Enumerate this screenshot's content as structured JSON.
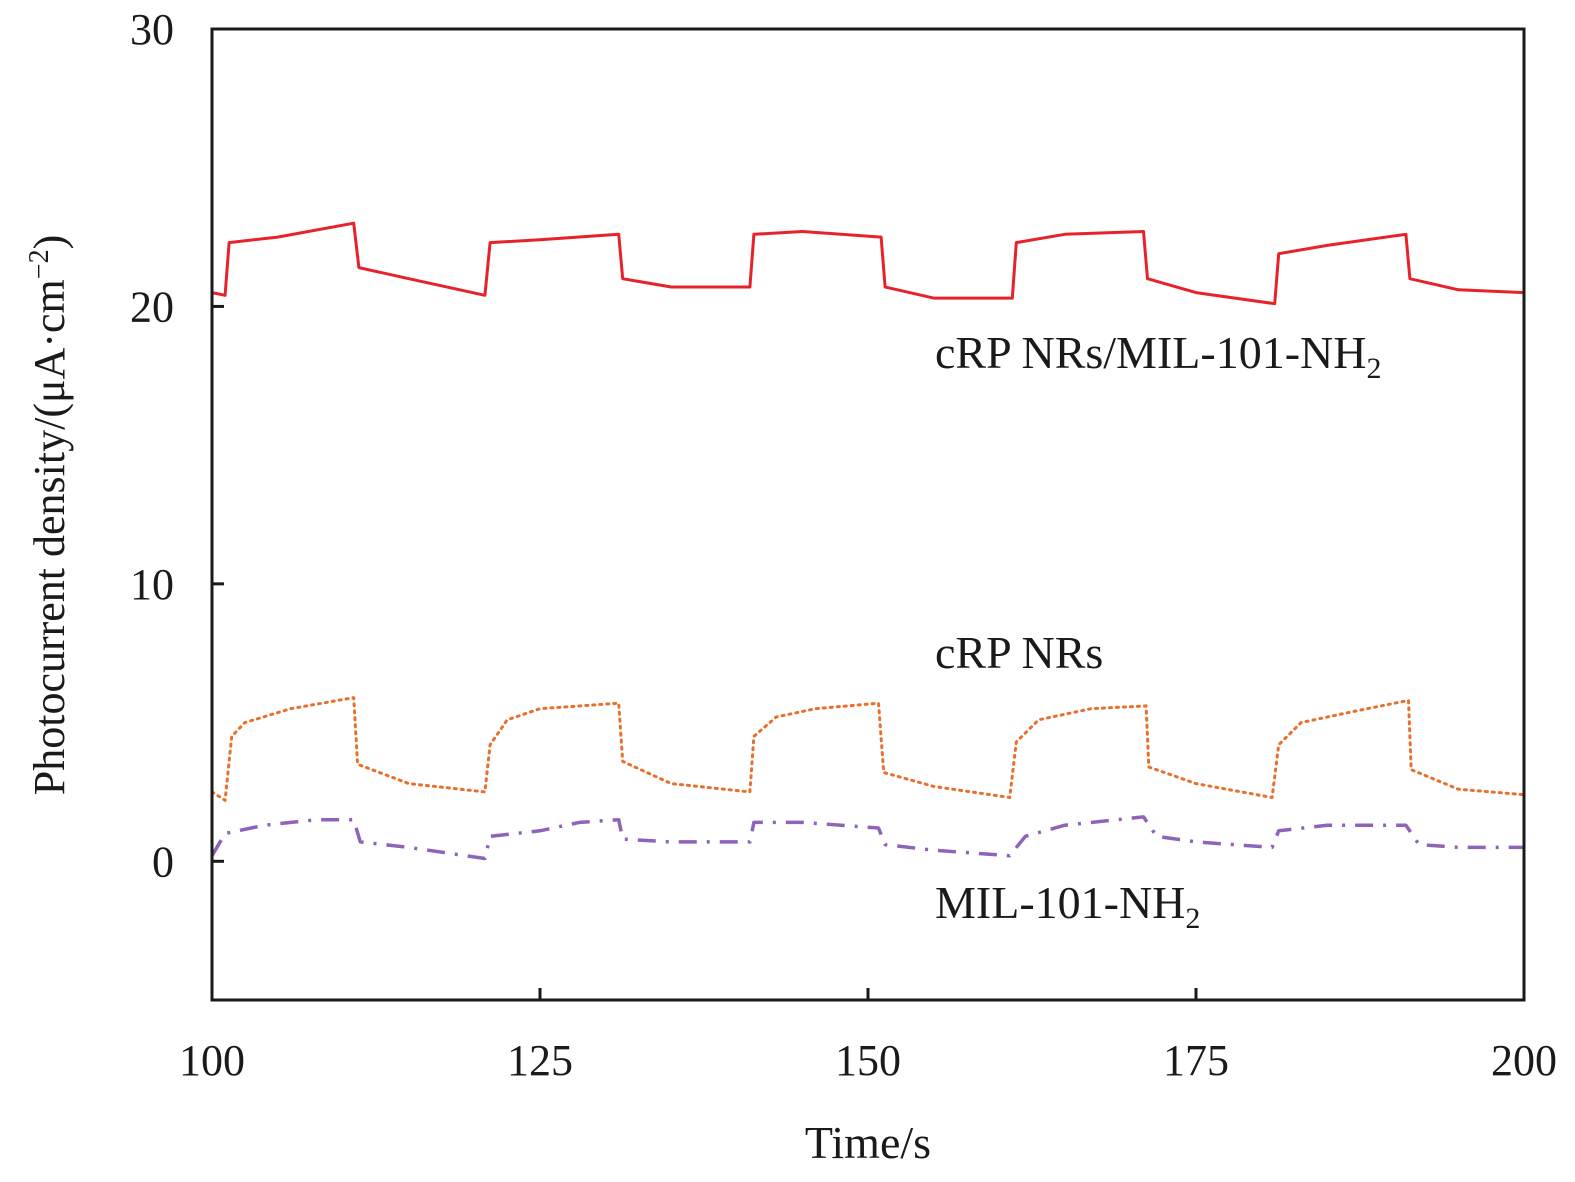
{
  "chart_data": {
    "type": "line",
    "title": "",
    "xlabel": "Time/s",
    "ylabel_parts": {
      "main": "Photocurrent density/(μA·cm",
      "sup": "−2",
      "close": ")"
    },
    "xlim": [
      100,
      200
    ],
    "ylim": [
      -5,
      30
    ],
    "xticks": [
      100,
      125,
      150,
      175,
      200
    ],
    "yticks": [
      0,
      10,
      20,
      30
    ],
    "grid": false,
    "series": [
      {
        "name": "cRP NRs/MIL-101-NH2",
        "label_main": "cRP NRs/MIL-101-NH",
        "label_sub": "2",
        "color": "#e8222a",
        "style": "solid",
        "points": [
          [
            100,
            20.5
          ],
          [
            101,
            20.4
          ],
          [
            101.3,
            22.3
          ],
          [
            105,
            22.5
          ],
          [
            110.8,
            23.0
          ],
          [
            111.2,
            21.4
          ],
          [
            115,
            21.0
          ],
          [
            120.8,
            20.4
          ],
          [
            121.2,
            22.3
          ],
          [
            125,
            22.4
          ],
          [
            131,
            22.6
          ],
          [
            131.3,
            21.0
          ],
          [
            135,
            20.7
          ],
          [
            141,
            20.7
          ],
          [
            141.3,
            22.6
          ],
          [
            145,
            22.7
          ],
          [
            151,
            22.5
          ],
          [
            151.3,
            20.7
          ],
          [
            155,
            20.3
          ],
          [
            161,
            20.3
          ],
          [
            161.3,
            22.3
          ],
          [
            165,
            22.6
          ],
          [
            171,
            22.7
          ],
          [
            171.3,
            21.0
          ],
          [
            175,
            20.5
          ],
          [
            181,
            20.1
          ],
          [
            181.3,
            21.9
          ],
          [
            185,
            22.2
          ],
          [
            191,
            22.6
          ],
          [
            191.3,
            21.0
          ],
          [
            195,
            20.6
          ],
          [
            200,
            20.5
          ]
        ]
      },
      {
        "name": "cRP NRs",
        "label_main": "cRP NRs",
        "label_sub": "",
        "color": "#e8702a",
        "style": "dotted",
        "points": [
          [
            100,
            2.5
          ],
          [
            101,
            2.2
          ],
          [
            101.5,
            4.5
          ],
          [
            102.5,
            5.0
          ],
          [
            106,
            5.5
          ],
          [
            110.8,
            5.9
          ],
          [
            111.1,
            3.5
          ],
          [
            115,
            2.8
          ],
          [
            120.8,
            2.5
          ],
          [
            121.2,
            4.2
          ],
          [
            122.5,
            5.1
          ],
          [
            125,
            5.5
          ],
          [
            131,
            5.7
          ],
          [
            131.3,
            3.6
          ],
          [
            135,
            2.8
          ],
          [
            141,
            2.5
          ],
          [
            141.3,
            4.5
          ],
          [
            143,
            5.2
          ],
          [
            146,
            5.5
          ],
          [
            150.8,
            5.7
          ],
          [
            151.2,
            3.2
          ],
          [
            155,
            2.7
          ],
          [
            160.8,
            2.3
          ],
          [
            161.3,
            4.3
          ],
          [
            163,
            5.1
          ],
          [
            167,
            5.5
          ],
          [
            171.2,
            5.6
          ],
          [
            171.4,
            3.4
          ],
          [
            175,
            2.8
          ],
          [
            180.8,
            2.3
          ],
          [
            181.3,
            4.2
          ],
          [
            183,
            5.0
          ],
          [
            187,
            5.4
          ],
          [
            191.2,
            5.8
          ],
          [
            191.4,
            3.3
          ],
          [
            195,
            2.6
          ],
          [
            200,
            2.4
          ]
        ]
      },
      {
        "name": "MIL-101-NH2",
        "label_main": "MIL-101-NH",
        "label_sub": "2",
        "color": "#8e63b8",
        "style": "dashdot",
        "points": [
          [
            100,
            0.2
          ],
          [
            101,
            1.0
          ],
          [
            104,
            1.3
          ],
          [
            108,
            1.5
          ],
          [
            110.8,
            1.5
          ],
          [
            111.3,
            0.7
          ],
          [
            115,
            0.5
          ],
          [
            120.8,
            0.1
          ],
          [
            121.2,
            0.9
          ],
          [
            125,
            1.1
          ],
          [
            128,
            1.4
          ],
          [
            131,
            1.5
          ],
          [
            131.3,
            0.8
          ],
          [
            135,
            0.7
          ],
          [
            141,
            0.7
          ],
          [
            141.3,
            1.4
          ],
          [
            145,
            1.4
          ],
          [
            150.8,
            1.2
          ],
          [
            151.3,
            0.6
          ],
          [
            155,
            0.4
          ],
          [
            160.8,
            0.2
          ],
          [
            162,
            0.9
          ],
          [
            165,
            1.3
          ],
          [
            171,
            1.6
          ],
          [
            172,
            0.9
          ],
          [
            175,
            0.7
          ],
          [
            180.8,
            0.5
          ],
          [
            181.3,
            1.1
          ],
          [
            185,
            1.3
          ],
          [
            191,
            1.3
          ],
          [
            192,
            0.6
          ],
          [
            195,
            0.5
          ],
          [
            200,
            0.5
          ]
        ]
      }
    ]
  }
}
